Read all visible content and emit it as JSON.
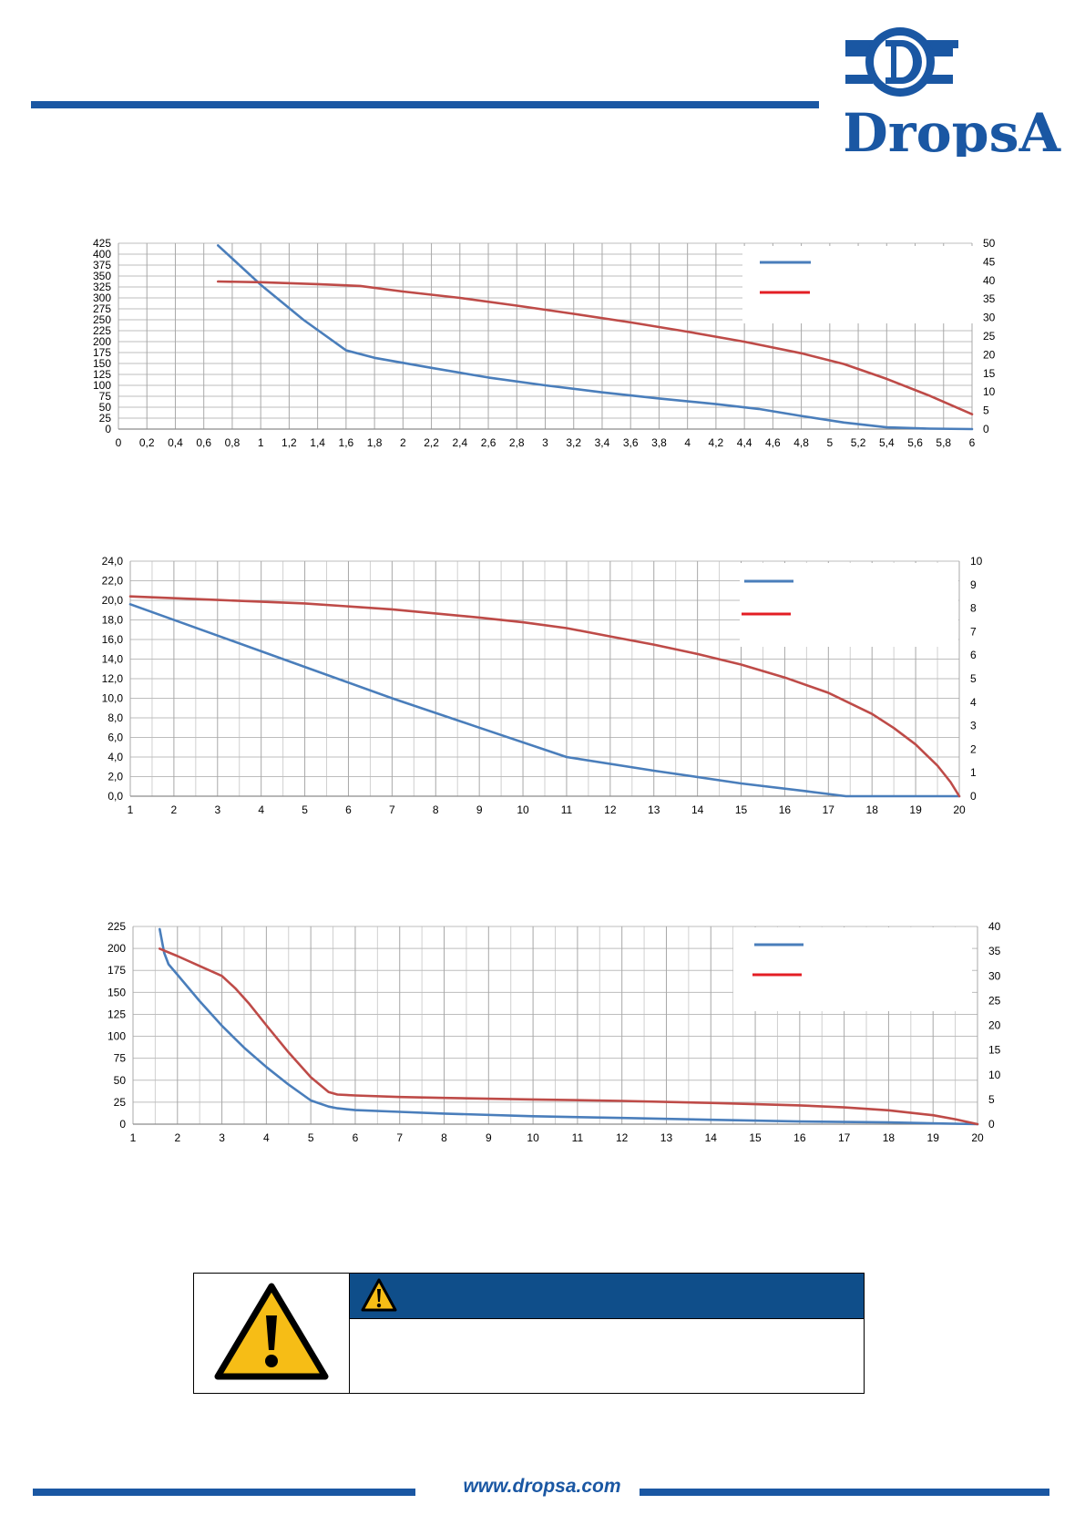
{
  "brand": {
    "name": "DropsA",
    "logo_letter": "D",
    "color": "#1a57a3"
  },
  "footer": {
    "url": "www.dropsa.com"
  },
  "warning": {
    "icon": "warning-triangle-icon",
    "header_color": "#0f4e8a",
    "icon_color": "#f6bd16"
  },
  "chart_data": [
    {
      "type": "line",
      "x_ticks": [
        "0",
        "0,2",
        "0,4",
        "0,6",
        "0,8",
        "1",
        "1,2",
        "1,4",
        "1,6",
        "1,8",
        "2",
        "2,2",
        "2,4",
        "2,6",
        "2,8",
        "3",
        "3,2",
        "3,4",
        "3,6",
        "3,8",
        "4",
        "4,2",
        "4,4",
        "4,6",
        "4,8",
        "5",
        "5,2",
        "5,4",
        "5,6",
        "5,8",
        "6"
      ],
      "xlim": [
        0,
        6
      ],
      "y_left_ticks": [
        "0",
        "25",
        "50",
        "75",
        "100",
        "125",
        "150",
        "175",
        "200",
        "225",
        "250",
        "275",
        "300",
        "325",
        "350",
        "375",
        "400",
        "425"
      ],
      "ylim_left": [
        0,
        425
      ],
      "y_right_ticks": [
        "0",
        "5",
        "10",
        "15",
        "20",
        "25",
        "30",
        "35",
        "40",
        "45",
        "50"
      ],
      "ylim_right": [
        0,
        50
      ],
      "grid": true,
      "legend": "top-right",
      "series": [
        {
          "color": "#4a7ebb",
          "axis": "left",
          "x": [
            0.7,
            1.0,
            1.3,
            1.6,
            1.8,
            2.2,
            2.6,
            3.0,
            3.4,
            3.8,
            4.2,
            4.5,
            4.8,
            5.1,
            5.4,
            5.7,
            6.0
          ],
          "y": [
            420,
            330,
            250,
            180,
            163,
            140,
            118,
            100,
            84,
            70,
            57,
            46,
            30,
            15,
            4,
            1,
            0
          ]
        },
        {
          "color": "#be4b48",
          "axis": "right",
          "x": [
            0.7,
            1.0,
            1.4,
            1.7,
            2.0,
            2.4,
            2.8,
            3.2,
            3.6,
            4.0,
            4.4,
            4.8,
            5.1,
            5.4,
            5.7,
            6.0
          ],
          "y": [
            39.7,
            39.5,
            39.0,
            38.5,
            37.0,
            35.3,
            33.2,
            31.0,
            28.7,
            26.2,
            23.5,
            20.4,
            17.5,
            13.5,
            9.0,
            4.0
          ]
        }
      ]
    },
    {
      "type": "line",
      "x_ticks": [
        "1",
        "2",
        "3",
        "4",
        "5",
        "6",
        "7",
        "8",
        "9",
        "10",
        "11",
        "12",
        "13",
        "14",
        "15",
        "16",
        "17",
        "18",
        "19",
        "20"
      ],
      "xlim": [
        1,
        20
      ],
      "y_left_ticks": [
        "0,0",
        "2,0",
        "4,0",
        "6,0",
        "8,0",
        "10,0",
        "12,0",
        "14,0",
        "16,0",
        "18,0",
        "20,0",
        "22,0",
        "24,0"
      ],
      "ylim_left": [
        0,
        24
      ],
      "y_right_ticks": [
        "0",
        "1",
        "2",
        "3",
        "4",
        "5",
        "6",
        "7",
        "8",
        "9",
        "10"
      ],
      "ylim_right": [
        0,
        10
      ],
      "grid": true,
      "legend": "top-right",
      "series": [
        {
          "color": "#4a7ebb",
          "axis": "left",
          "x": [
            1,
            3,
            5,
            7,
            9,
            11,
            13,
            15,
            16.5,
            17.4,
            18,
            20
          ],
          "y": [
            19.6,
            16.4,
            13.2,
            10.0,
            7.0,
            4.0,
            2.6,
            1.3,
            0.5,
            0,
            0,
            0
          ]
        },
        {
          "color": "#be4b48",
          "axis": "right",
          "x": [
            1,
            3,
            5,
            7,
            9,
            10,
            11,
            12,
            13,
            14,
            15,
            16,
            17,
            18,
            18.5,
            19,
            19.5,
            19.8,
            20
          ],
          "y": [
            8.5,
            8.35,
            8.2,
            7.95,
            7.6,
            7.4,
            7.15,
            6.8,
            6.45,
            6.05,
            5.6,
            5.05,
            4.4,
            3.5,
            2.9,
            2.2,
            1.3,
            0.6,
            0
          ]
        }
      ]
    },
    {
      "type": "line",
      "x_ticks": [
        "1",
        "2",
        "3",
        "4",
        "5",
        "6",
        "7",
        "8",
        "9",
        "10",
        "11",
        "12",
        "13",
        "14",
        "15",
        "16",
        "17",
        "18",
        "19",
        "20"
      ],
      "xlim": [
        1,
        20
      ],
      "y_left_ticks": [
        "0",
        "25",
        "50",
        "75",
        "100",
        "125",
        "150",
        "175",
        "200",
        "225"
      ],
      "ylim_left": [
        0,
        225
      ],
      "y_right_ticks": [
        "0",
        "5",
        "10",
        "15",
        "20",
        "25",
        "30",
        "35",
        "40"
      ],
      "ylim_right": [
        0,
        40
      ],
      "grid": true,
      "legend": "top-right",
      "series": [
        {
          "color": "#4a7ebb",
          "axis": "left",
          "x": [
            1.6,
            1.7,
            1.8,
            2.0,
            2.5,
            3.0,
            3.5,
            4.0,
            4.5,
            5.0,
            5.4,
            5.6,
            6.0,
            7.0,
            8.0,
            10,
            12,
            14,
            16,
            18,
            20
          ],
          "y": [
            222,
            195,
            182,
            170,
            140,
            112,
            87,
            65,
            45,
            27,
            20,
            18,
            16,
            14,
            12,
            9,
            7,
            5,
            3,
            2,
            0
          ]
        },
        {
          "color": "#be4b48",
          "axis": "right",
          "x": [
            1.6,
            2.0,
            2.5,
            3.0,
            3.3,
            3.6,
            4.0,
            4.5,
            5.0,
            5.4,
            5.6,
            6.0,
            7.0,
            8.0,
            10,
            12,
            14,
            16,
            17,
            18,
            19,
            19.5,
            20
          ],
          "y": [
            35.5,
            34,
            32,
            30,
            27.5,
            24.5,
            20,
            14.5,
            9.5,
            6.5,
            6.0,
            5.8,
            5.5,
            5.3,
            5.0,
            4.7,
            4.3,
            3.8,
            3.4,
            2.8,
            1.8,
            1.0,
            0
          ]
        }
      ]
    }
  ]
}
